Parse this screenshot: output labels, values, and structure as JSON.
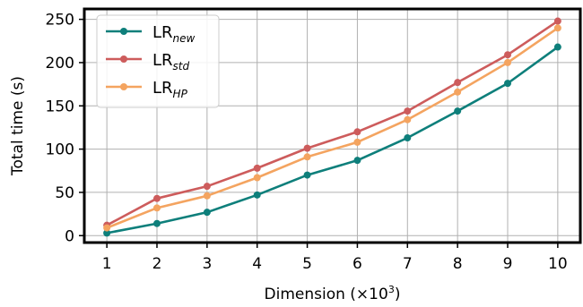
{
  "chart_data": {
    "type": "line",
    "xlabel": "Dimension (×10",
    "xlabel_exp": "3",
    "xlabel_close": ")",
    "ylabel": "Total time (s)",
    "x": [
      1,
      2,
      3,
      4,
      5,
      6,
      7,
      8,
      9,
      10
    ],
    "xlim": [
      0.55,
      10.45
    ],
    "ylim": [
      -8,
      262
    ],
    "yticks": [
      0,
      50,
      100,
      150,
      200,
      250
    ],
    "grid": true,
    "legend_position": "top-left",
    "series": [
      {
        "name": "LR",
        "name_sub": "new",
        "color": "#0e7f7b",
        "values": [
          3,
          14,
          27,
          47,
          70,
          87,
          113,
          144,
          176,
          218
        ]
      },
      {
        "name": "LR",
        "name_sub": "std",
        "color": "#cd5c5c",
        "values": [
          12,
          43,
          57,
          78,
          101,
          120,
          144,
          177,
          209,
          248
        ]
      },
      {
        "name": "LR",
        "name_sub": "HP",
        "color": "#f4a460",
        "values": [
          9,
          32,
          46,
          67,
          91,
          108,
          134,
          166,
          200,
          240
        ]
      }
    ]
  }
}
